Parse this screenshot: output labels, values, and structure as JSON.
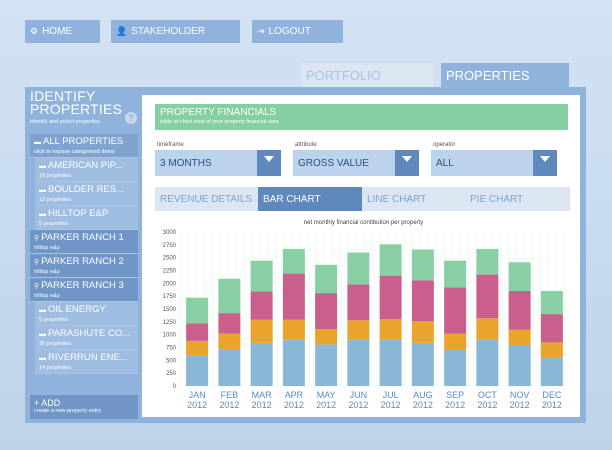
{
  "nav": {
    "home": "HOME",
    "stakeholder": "STAKEHOLDER",
    "logout": "LOGOUT"
  },
  "tabs": {
    "portfolio": "PORTFOLIO",
    "properties": "PROPERTIES"
  },
  "sidebar": {
    "title_line1": "IDENTIFY",
    "title_line2": "PROPERTIES",
    "subtitle": "identify and select properties",
    "help": "?",
    "items": [
      {
        "title": "ALL PROPERTIES",
        "sub": "click to expose categorised items",
        "icon": "folder-icon",
        "level": 0
      },
      {
        "title": "AMERICAN PIP...",
        "sub": "16 properties",
        "icon": "folder-icon",
        "level": 1
      },
      {
        "title": "BOULDER RES...",
        "sub": "12 properties",
        "icon": "folder-icon",
        "level": 1
      },
      {
        "title": "HILLTOP E&P",
        "sub": "5 properties",
        "icon": "folder-icon",
        "level": 1
      },
      {
        "title": "PARKER RANCH 1",
        "sub": "hilltop e&p",
        "icon": "pin-icon",
        "level": 0
      },
      {
        "title": "PARKER RANCH 2",
        "sub": "hilltop e&p",
        "icon": "pin-icon",
        "level": 0
      },
      {
        "title": "PARKER RANCH 3",
        "sub": "hilltop e&p",
        "icon": "pin-icon",
        "level": 0
      },
      {
        "title": "OIL ENERGY",
        "sub": "5 properties",
        "icon": "folder-icon",
        "level": 1
      },
      {
        "title": "PARASHUTE CO...",
        "sub": "30 properties",
        "icon": "folder-icon",
        "level": 1
      },
      {
        "title": "RIVERRUN ENE...",
        "sub": "14 properties",
        "icon": "folder-icon",
        "level": 1
      }
    ],
    "add_title": "+ ADD",
    "add_sub": "create a new property entry"
  },
  "panel": {
    "title": "PROPERTY FINANCIALS",
    "subtitle": "table or chart view of your property financial data"
  },
  "filters": {
    "timeframe_label": "timeframe",
    "timeframe_value": "3 MONTHS",
    "attribute_label": "attribute",
    "attribute_value": "GROSS VALUE",
    "operator_label": "operator",
    "operator_value": "ALL"
  },
  "view_tabs": {
    "revenue": "REVENUE DETAILS",
    "bar": "BAR CHART",
    "line": "LINE CHART",
    "pie": "PIE CHART"
  },
  "colors": {
    "blue": "#8ab7d6",
    "orange": "#e9a42c",
    "pink": "#c9608c",
    "green": "#88cfa3",
    "panel": "#8fb3dc",
    "accent_green": "#85cfa2"
  },
  "chart_data": {
    "type": "bar",
    "stacked": true,
    "title": "net monthly financial contibution per property",
    "categories": [
      "JAN",
      "FEB",
      "MAR",
      "APR",
      "MAY",
      "JUN",
      "JUL",
      "AUG",
      "SEP",
      "OCT",
      "NOV",
      "DEC"
    ],
    "category_years": [
      "2012",
      "2012",
      "2012",
      "2012",
      "2012",
      "2012",
      "2012",
      "2012",
      "2012",
      "2012",
      "2012",
      "2012"
    ],
    "series": [
      {
        "color": "#8ab7d6",
        "values": [
          600,
          720,
          840,
          900,
          810,
          900,
          900,
          840,
          700,
          900,
          800,
          550
        ]
      },
      {
        "color": "#e9a42c",
        "values": [
          280,
          300,
          450,
          390,
          300,
          380,
          400,
          420,
          320,
          420,
          300,
          300
        ]
      },
      {
        "color": "#c9608c",
        "values": [
          340,
          400,
          550,
          900,
          700,
          700,
          850,
          800,
          900,
          850,
          750,
          550
        ]
      },
      {
        "color": "#88cfa3",
        "values": [
          500,
          670,
          600,
          480,
          550,
          620,
          610,
          600,
          520,
          500,
          560,
          450
        ]
      }
    ],
    "ylim": [
      0,
      3000
    ],
    "yticks": [
      0,
      250,
      500,
      750,
      1000,
      1250,
      1500,
      1750,
      2000,
      2250,
      2500,
      2750,
      3000
    ],
    "grid": true
  }
}
